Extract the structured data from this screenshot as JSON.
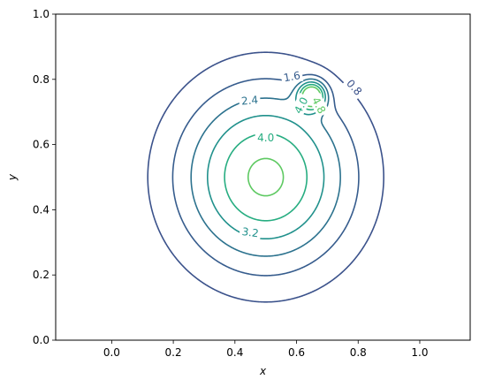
{
  "chart_data": {
    "type": "contour",
    "xlabel": "x",
    "ylabel": "y",
    "xlim": [
      -0.1818,
      1.1636
    ],
    "ylim": [
      0.0,
      1.0
    ],
    "xticks": [
      "0.0",
      "0.2",
      "0.4",
      "0.6",
      "0.8",
      "1.0"
    ],
    "xtick_values": [
      0.0,
      0.2,
      0.4,
      0.6,
      0.8,
      1.0
    ],
    "yticks": [
      "0.0",
      "0.2",
      "0.4",
      "0.6",
      "0.8",
      "1.0"
    ],
    "ytick_values": [
      0.0,
      0.2,
      0.4,
      0.6,
      0.8,
      1.0
    ],
    "grid": false,
    "aspect": "equal",
    "field": {
      "peaks": [
        {
          "x": 0.5,
          "y": 0.5,
          "amplitude": 5.0,
          "sigma": 0.2
        },
        {
          "x": 0.65,
          "y": 0.75,
          "amplitude": 5.0,
          "sigma": 0.03
        }
      ]
    },
    "levels": [
      {
        "value": 0.8,
        "color": "#3b528b"
      },
      {
        "value": 1.6,
        "color": "#365c8d"
      },
      {
        "value": 2.4,
        "color": "#2c728e"
      },
      {
        "value": 3.2,
        "color": "#21918c"
      },
      {
        "value": 4.0,
        "color": "#27ad81"
      },
      {
        "value": 4.8,
        "color": "#5ec962"
      }
    ],
    "contour_labels": [
      {
        "text": "0.8",
        "x": 0.787,
        "y": 0.775,
        "rotation": 48,
        "color": "#3b528b"
      },
      {
        "text": "1.6",
        "x": 0.585,
        "y": 0.808,
        "rotation": -10,
        "color": "#365c8d"
      },
      {
        "text": "2.4",
        "x": 0.448,
        "y": 0.735,
        "rotation": -5,
        "color": "#2c728e"
      },
      {
        "text": "3.2",
        "x": 0.45,
        "y": 0.33,
        "rotation": 8,
        "color": "#21918c"
      },
      {
        "text": "4.0",
        "x": 0.5,
        "y": 0.621,
        "rotation": 0,
        "color": "#27ad81"
      },
      {
        "text": "4.0",
        "x": 0.615,
        "y": 0.72,
        "rotation": -62,
        "color": "#27ad81"
      },
      {
        "text": "4.8",
        "x": 0.672,
        "y": 0.72,
        "rotation": 62,
        "color": "#5ec962"
      }
    ]
  }
}
